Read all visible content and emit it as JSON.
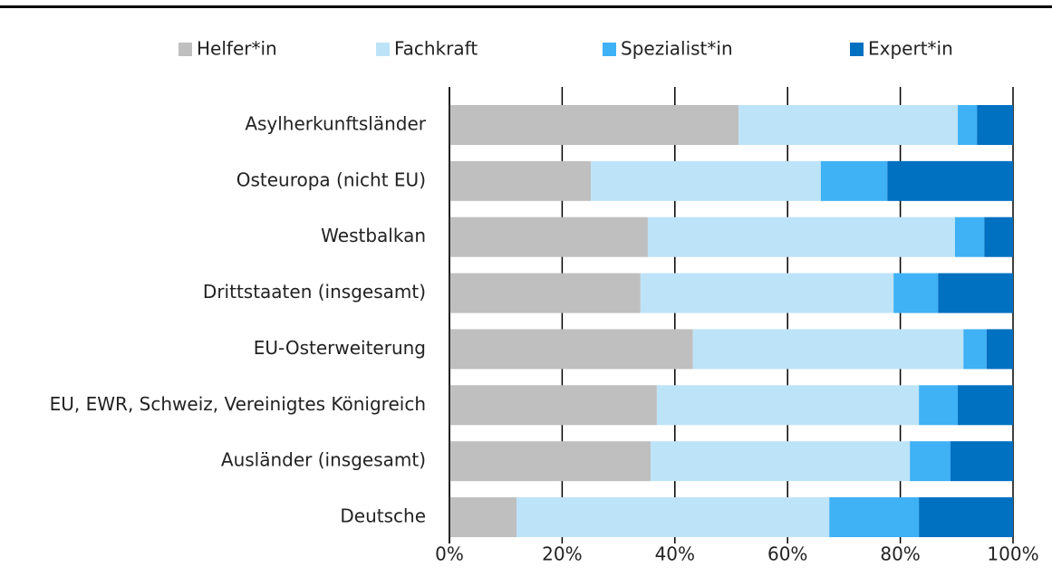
{
  "chart_data": {
    "type": "stacked-bar-horizontal",
    "categories": [
      "Asylherkunftsländer",
      "Osteuropa (nicht EU)",
      "Westbalkan",
      "Drittstaaten (insgesamt)",
      "EU-Osterweiterung",
      "EU, EWR, Schweiz, Vereinigtes Königreich",
      "Ausländer (insgesamt)",
      "Deutsche"
    ],
    "series": [
      {
        "name": "Helfer*in",
        "color": "#bfbfbf",
        "values": [
          51.3,
          25.1,
          35.2,
          33.9,
          43.2,
          36.8,
          35.7,
          11.9
        ]
      },
      {
        "name": "Fachkraft",
        "color": "#bde3f8",
        "values": [
          38.9,
          40.8,
          54.5,
          44.9,
          48.0,
          46.5,
          46.0,
          55.5
        ]
      },
      {
        "name": "Spezialist*in",
        "color": "#3fb1f5",
        "values": [
          3.4,
          11.8,
          5.2,
          7.9,
          4.1,
          6.9,
          7.2,
          15.9
        ]
      },
      {
        "name": "Expert*in",
        "color": "#0070c0",
        "values": [
          6.4,
          22.3,
          5.1,
          13.3,
          4.7,
          9.8,
          11.1,
          16.7
        ]
      }
    ],
    "xlim": [
      0,
      100
    ],
    "xticks": [
      {
        "value": 0,
        "label": "0%"
      },
      {
        "value": 20,
        "label": "20%"
      },
      {
        "value": 40,
        "label": "40%"
      },
      {
        "value": 60,
        "label": "60%"
      },
      {
        "value": 80,
        "label": "80%"
      },
      {
        "value": 100,
        "label": "100%"
      }
    ],
    "grid": true,
    "legend": "top"
  }
}
